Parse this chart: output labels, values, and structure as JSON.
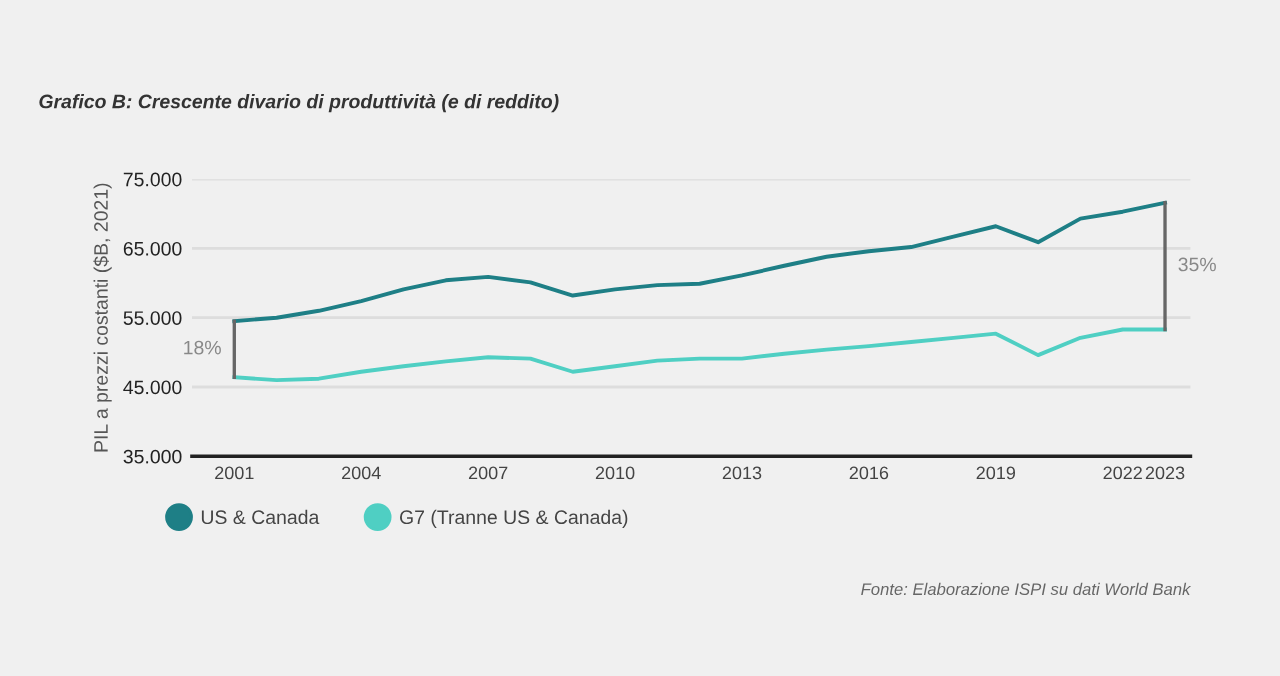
{
  "chart_data": {
    "type": "line",
    "title": "Grafico B: Crescente divario di produttività (e di reddito)",
    "ylabel": "PIL a prezzi costanti ($B, 2021)",
    "x": [
      2001,
      2002,
      2003,
      2004,
      2005,
      2006,
      2007,
      2008,
      2009,
      2010,
      2011,
      2012,
      2013,
      2014,
      2015,
      2016,
      2017,
      2018,
      2019,
      2020,
      2021,
      2022,
      2023
    ],
    "series": [
      {
        "name": "US & Canada",
        "color": "#1e7f86",
        "values": [
          54500,
          55000,
          56000,
          57400,
          59100,
          60400,
          60900,
          60100,
          58200,
          59100,
          59700,
          59900,
          61100,
          62500,
          63800,
          64600,
          65200,
          66700,
          68200,
          65900,
          69300,
          70300,
          71600
        ]
      },
      {
        "name": "G7 (Tranne US & Canada)",
        "color": "#4fcfc3",
        "values": [
          46400,
          46000,
          46200,
          47200,
          48000,
          48700,
          49300,
          49100,
          47200,
          48000,
          48800,
          49100,
          49100,
          49800,
          50400,
          50900,
          51500,
          52100,
          52700,
          49600,
          52100,
          53300,
          53300
        ]
      }
    ],
    "ylim": [
      35000,
      75000
    ],
    "yticks": [
      {
        "value": 35000,
        "label": "35.000"
      },
      {
        "value": 45000,
        "label": "45.000"
      },
      {
        "value": 55000,
        "label": "55.000"
      },
      {
        "value": 65000,
        "label": "65.000"
      },
      {
        "value": 75000,
        "label": "75.000"
      }
    ],
    "xlim": [
      2000,
      2023.6
    ],
    "xticks": [
      2001,
      2004,
      2007,
      2010,
      2013,
      2016,
      2019,
      2022,
      2023
    ],
    "grid": "y",
    "legend": "bottom",
    "marker": "none",
    "line_style": "solid",
    "annotations": [
      "18%",
      "35%",
      "Fonte: Elaborazione ISPI su dati World Bank"
    ]
  }
}
